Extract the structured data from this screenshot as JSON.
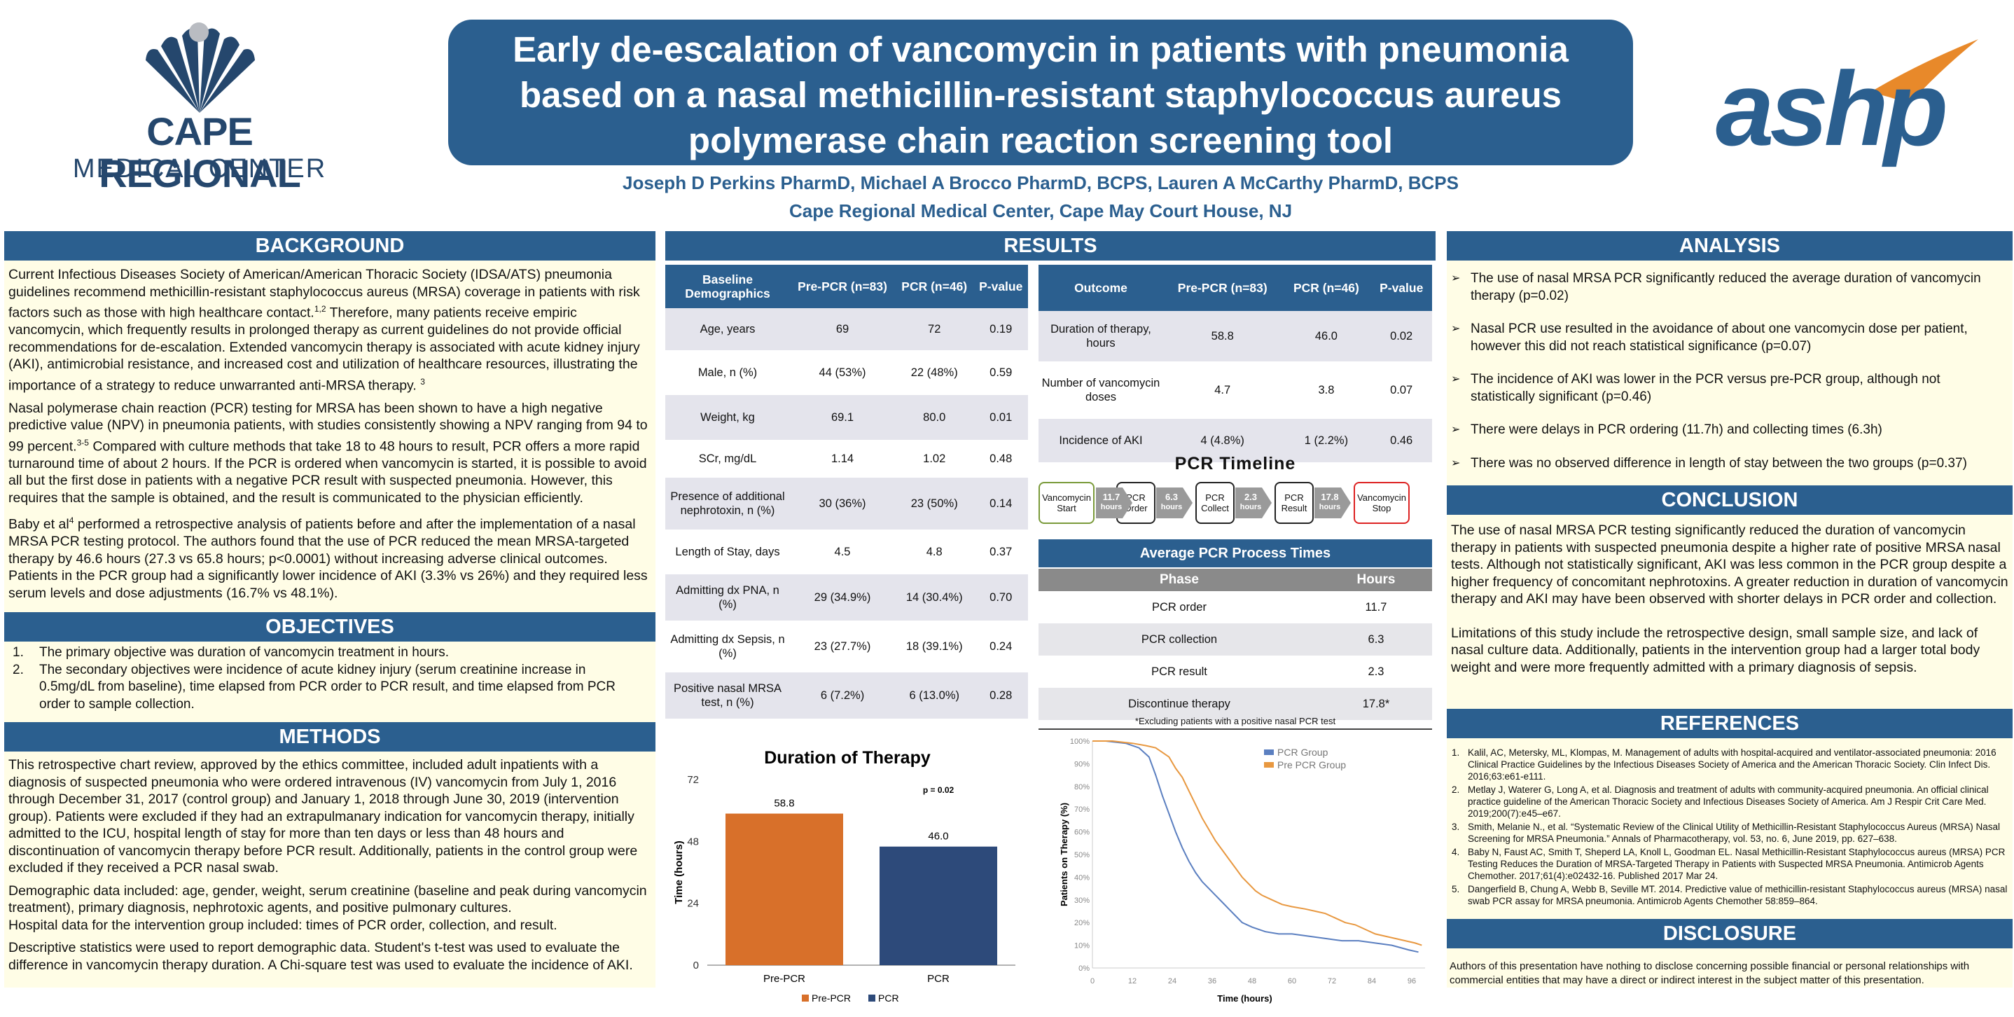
{
  "logos": {
    "cape_line1": "CAPE REGIONAL",
    "cape_line2": "MEDICAL CENTER",
    "ashp": "ashp"
  },
  "title": {
    "line1": "Early de-escalation of vancomycin in patients with pneumonia",
    "line2": "based on a nasal methicillin-resistant staphylococcus aureus",
    "line3": "polymerase chain reaction screening tool",
    "authors": "Joseph D Perkins PharmD, Michael A Brocco PharmD, BCPS, Lauren A McCarthy PharmD, BCPS",
    "affiliation": "Cape Regional Medical Center, Cape May Court House, NJ"
  },
  "background": {
    "heading": "BACKGROUND",
    "p1a": "Current Infectious Diseases Society of American/American Thoracic Society (IDSA/ATS) pneumonia guidelines recommend methicillin-resistant staphylococcus aureus (MRSA) coverage in patients with risk factors such as those with high healthcare contact.",
    "p1sup": "1,2",
    "p1b": " Therefore, many patients receive empiric vancomycin, which frequently results in prolonged therapy as current guidelines do not provide official recommendations for de-escalation. Extended vancomycin therapy is associated with acute kidney injury (AKI), antimicrobial resistance, and increased cost and utilization of healthcare resources, illustrating the importance of a strategy to reduce unwarranted anti-MRSA therapy. ",
    "p1sup2": "3",
    "p2a": "Nasal polymerase chain reaction (PCR) testing for MRSA has been shown to have a high negative predictive value (NPV) in pneumonia patients, with studies consistently showing a NPV ranging from 94 to 99 percent.",
    "p2sup": "3-5",
    "p2b": " Compared with culture methods that take 18 to 48 hours to result, PCR offers a more rapid turnaround time of about 2 hours. If the PCR is ordered when vancomycin is started, it is possible to avoid all but the first dose in patients with a negative PCR result with suspected pneumonia. However, this requires that the sample is obtained, and the result is communicated to the physician efficiently.",
    "p3a": "Baby et al",
    "p3sup": "4",
    "p3b": " performed a retrospective analysis of patients before and after the implementation of a nasal MRSA PCR testing protocol. The authors found that the use of PCR reduced the mean MRSA-targeted therapy by 46.6 hours (27.3 vs 65.8 hours; p<0.0001) without increasing adverse clinical outcomes. Patients in the PCR group had a significantly lower incidence of AKI (3.3% vs 26%) and they required less serum levels and dose adjustments (16.7% vs 48.1%)."
  },
  "objectives": {
    "heading": "OBJECTIVES",
    "items": [
      {
        "num": "1.",
        "text": "The primary objective was duration of vancomycin treatment in hours."
      },
      {
        "num": "2.",
        "text": "The secondary objectives were incidence of acute kidney injury (serum creatinine increase in 0.5mg/dL from baseline), time elapsed from PCR order to PCR result, and time elapsed from PCR order to sample collection."
      }
    ]
  },
  "methods": {
    "heading": "METHODS",
    "p1": "This retrospective chart review, approved by the ethics committee, included adult inpatients with a diagnosis of suspected pneumonia who were ordered intravenous (IV) vancomycin from July 1, 2016 through December 31, 2017 (control group) and January 1, 2018 through June 30, 2019 (intervention group). Patients were excluded if they had an extrapulmanary indication for vancomycin therapy, initially admitted to the ICU, hospital length of stay for more than ten days or less than 48 hours and discontinuation of vancomycin therapy before PCR result. Additionally, patients in the control group were excluded if they received a PCR nasal swab.",
    "p2": "Demographic data included: age, gender, weight, serum creatinine (baseline and peak during vancomycin treatment), primary diagnosis, nephrotoxic agents, and positive pulmonary cultures.",
    "p3": "Hospital data for the intervention group included: times of PCR order, collection, and result.",
    "p4": "Descriptive statistics were used to report demographic data. Student's t-test was used to evaluate the difference in vancomycin therapy duration. A Chi-square test was used to evaluate the incidence of AKI."
  },
  "results": {
    "heading": "RESULTS",
    "baseline_table": {
      "headers": [
        "Baseline Demographics",
        "Pre-PCR (n=83)",
        "PCR (n=46)",
        "P-value"
      ],
      "rows": [
        [
          "Age, years",
          "69",
          "72",
          "0.19"
        ],
        [
          "Male, n (%)",
          "44 (53%)",
          "22 (48%)",
          "0.59"
        ],
        [
          "Weight, kg",
          "69.1",
          "80.0",
          "0.01"
        ],
        [
          "SCr, mg/dL",
          "1.14",
          "1.02",
          "0.48"
        ],
        [
          "Presence of additional nephrotoxin, n (%)",
          "30 (36%)",
          "23 (50%)",
          "0.14"
        ],
        [
          "Length of Stay, days",
          "4.5",
          "4.8",
          "0.37"
        ],
        [
          "Admitting dx PNA, n (%)",
          "29 (34.9%)",
          "14 (30.4%)",
          "0.70"
        ],
        [
          "Admitting dx Sepsis, n (%)",
          "23 (27.7%)",
          "18 (39.1%)",
          "0.24"
        ],
        [
          "Positive nasal MRSA test, n (%)",
          "6 (7.2%)",
          "6 (13.0%)",
          "0.28"
        ]
      ]
    },
    "outcome_table": {
      "headers": [
        "Outcome",
        "Pre-PCR (n=83)",
        "PCR (n=46)",
        "P-value"
      ],
      "rows": [
        [
          "Duration of therapy, hours",
          "58.8",
          "46.0",
          "0.02"
        ],
        [
          "Number of  vancomycin doses",
          "4.7",
          "3.8",
          "0.07"
        ],
        [
          "Incidence of AKI",
          "4 (4.8%)",
          "1 (2.2%)",
          "0.46"
        ]
      ]
    },
    "timeline": {
      "title": "PCR Timeline",
      "steps": [
        "Vancomycin Start",
        "PCR Order",
        "PCR Collect",
        "PCR Result",
        "Vancomycin Stop"
      ],
      "gaps": [
        {
          "value": "11.7",
          "unit": "hours"
        },
        {
          "value": "6.3",
          "unit": "hours"
        },
        {
          "value": "2.3",
          "unit": "hours"
        },
        {
          "value": "17.8",
          "unit": "hours"
        }
      ]
    },
    "process_times": {
      "title": "Average PCR Process Times",
      "headers": [
        "Phase",
        "Hours"
      ],
      "rows": [
        [
          "PCR order",
          "11.7"
        ],
        [
          "PCR collection",
          "6.3"
        ],
        [
          "PCR result",
          "2.3"
        ],
        [
          "Discontinue therapy",
          "17.8*"
        ]
      ],
      "footnote": "*Excluding patients with a positive nasal PCR test"
    }
  },
  "chart_data": [
    {
      "type": "bar",
      "title": "Duration of Therapy",
      "categories": [
        "Pre-PCR",
        "PCR"
      ],
      "values": [
        58.8,
        46.0
      ],
      "colors": [
        "#d8702a",
        "#2d4a7a"
      ],
      "ylabel": "Time (hours)",
      "ylim": [
        0,
        72
      ],
      "yticks": [
        0,
        24,
        48,
        72
      ],
      "annotation": "p = 0.02",
      "legend": [
        "Pre-PCR",
        "PCR"
      ],
      "legend_position": "bottom",
      "grid": false
    },
    {
      "type": "line",
      "ylabel": "Patients on Therapy (%)",
      "xlabel": "Time (hours)",
      "xticks": [
        0,
        12,
        24,
        36,
        48,
        60,
        72,
        84,
        96
      ],
      "yticks": [
        "0%",
        "10%",
        "20%",
        "30%",
        "40%",
        "50%",
        "60%",
        "70%",
        "80%",
        "90%",
        "100%"
      ],
      "xlim": [
        0,
        100
      ],
      "ylim": [
        0,
        100
      ],
      "legend_position": "top-right",
      "series": [
        {
          "name": "PCR Group",
          "color": "#5b7fc0",
          "points": [
            [
              0,
              100
            ],
            [
              4,
              100
            ],
            [
              10,
              99
            ],
            [
              14,
              97
            ],
            [
              17,
              93
            ],
            [
              19,
              85
            ],
            [
              21,
              76
            ],
            [
              23,
              68
            ],
            [
              25,
              60
            ],
            [
              27,
              53
            ],
            [
              29,
              47
            ],
            [
              31,
              42
            ],
            [
              33,
              38
            ],
            [
              35,
              35
            ],
            [
              37,
              32
            ],
            [
              39,
              29
            ],
            [
              41,
              26
            ],
            [
              43,
              23
            ],
            [
              45,
              20
            ],
            [
              48,
              18
            ],
            [
              52,
              16
            ],
            [
              56,
              15
            ],
            [
              60,
              15
            ],
            [
              65,
              14
            ],
            [
              70,
              13
            ],
            [
              75,
              12
            ],
            [
              80,
              12
            ],
            [
              85,
              11
            ],
            [
              90,
              10
            ],
            [
              95,
              8
            ],
            [
              98,
              7
            ]
          ]
        },
        {
          "name": "Pre PCR Group",
          "color": "#e89840",
          "points": [
            [
              0,
              100
            ],
            [
              6,
              100
            ],
            [
              12,
              99
            ],
            [
              16,
              98
            ],
            [
              19,
              97
            ],
            [
              21,
              95
            ],
            [
              23,
              93
            ],
            [
              25,
              88
            ],
            [
              27,
              84
            ],
            [
              29,
              78
            ],
            [
              31,
              72
            ],
            [
              33,
              66
            ],
            [
              35,
              61
            ],
            [
              37,
              56
            ],
            [
              39,
              52
            ],
            [
              41,
              48
            ],
            [
              43,
              44
            ],
            [
              45,
              40
            ],
            [
              47,
              37
            ],
            [
              49,
              34
            ],
            [
              51,
              32
            ],
            [
              54,
              30
            ],
            [
              57,
              28
            ],
            [
              60,
              27
            ],
            [
              64,
              26
            ],
            [
              67,
              25
            ],
            [
              70,
              24
            ],
            [
              73,
              22
            ],
            [
              76,
              20
            ],
            [
              79,
              19
            ],
            [
              82,
              17
            ],
            [
              85,
              15
            ],
            [
              88,
              14
            ],
            [
              91,
              13
            ],
            [
              94,
              12
            ],
            [
              97,
              11
            ],
            [
              99,
              10
            ]
          ]
        }
      ]
    }
  ],
  "analysis": {
    "heading": "ANALYSIS",
    "items": [
      "The use of nasal MRSA PCR significantly reduced the average duration of vancomycin therapy (p=0.02)",
      "Nasal PCR use resulted in the avoidance of about one vancomycin dose per patient, however this did not reach statistical significance (p=0.07)",
      "The incidence of AKI was lower in the PCR versus pre-PCR group, although not statistically significant (p=0.46)",
      "There were delays in PCR ordering (11.7h) and collecting times (6.3h)",
      "There was no observed difference in length of stay between the two groups (p=0.37)"
    ]
  },
  "conclusion": {
    "heading": "CONCLUSION",
    "p1": "The use of nasal MRSA PCR testing significantly reduced the duration of vancomycin therapy in patients with suspected pneumonia despite a higher rate of positive MRSA nasal tests. Although not statistically significant, AKI was less common in the PCR group despite a higher frequency of concomitant nephrotoxins. A greater reduction in duration of vancomycin therapy and AKI may have been observed with shorter delays in PCR order and collection.",
    "p2": "Limitations of this study include the retrospective design, small sample size, and lack of nasal culture data. Additionally, patients in the intervention group had a larger total body weight and were more frequently admitted with a primary diagnosis of sepsis."
  },
  "references": {
    "heading": "REFERENCES",
    "items": [
      {
        "num": "1.",
        "text": "Kalil, AC, Metersky, ML, Klompas, M. Management of adults with hospital-acquired and ventilator-associated pneumonia: 2016 Clinical Practice Guidelines by the Infectious Diseases Society of America and the American Thoracic Society. Clin Infect Dis. 2016;63:e61-e111."
      },
      {
        "num": "2.",
        "text": "Metlay J, Waterer G, Long A, et al. Diagnosis and treatment of adults with community-acquired pneumonia. An official clinical practice guideline of the American Thoracic Society and Infectious Diseases Society of America. Am J Respir Crit Care Med. 2019;200(7):e45–e67."
      },
      {
        "num": "3.",
        "text": "Smith, Melanie N., et al. “Systematic Review of the Clinical Utility of Methicillin-Resistant Staphylococcus Aureus (MRSA) Nasal Screening for MRSA Pneumonia.” Annals of Pharmacotherapy, vol. 53, no. 6, June 2019, pp. 627–638."
      },
      {
        "num": "4.",
        "text": "Baby N, Faust AC, Smith T, Sheperd LA, Knoll L, Goodman EL. Nasal Methicillin-Resistant Staphylococcus aureus (MRSA) PCR Testing Reduces the Duration of MRSA-Targeted Therapy in Patients with Suspected MRSA Pneumonia. Antimicrob Agents Chemother. 2017;61(4):e02432-16. Published 2017 Mar 24."
      },
      {
        "num": "5.",
        "text": "Dangerfield B, Chung A, Webb B, Seville MT. 2014. Predictive value of methicillin-resistant Staphylococcus aureus (MRSA) nasal swab PCR assay for MRSA pneumonia. Antimicrob Agents Chemother 58:859–864."
      }
    ]
  },
  "disclosure": {
    "heading": "DISCLOSURE",
    "text": "Authors of this presentation have nothing to disclose concerning possible financial or personal relationships with commercial entities that may have a direct or indirect interest in the subject matter  of this presentation."
  },
  "colors": {
    "header": "#2b5f8f",
    "panel": "#fffde6",
    "pre_pcr": "#d8702a",
    "pcr": "#2d4a7a"
  }
}
